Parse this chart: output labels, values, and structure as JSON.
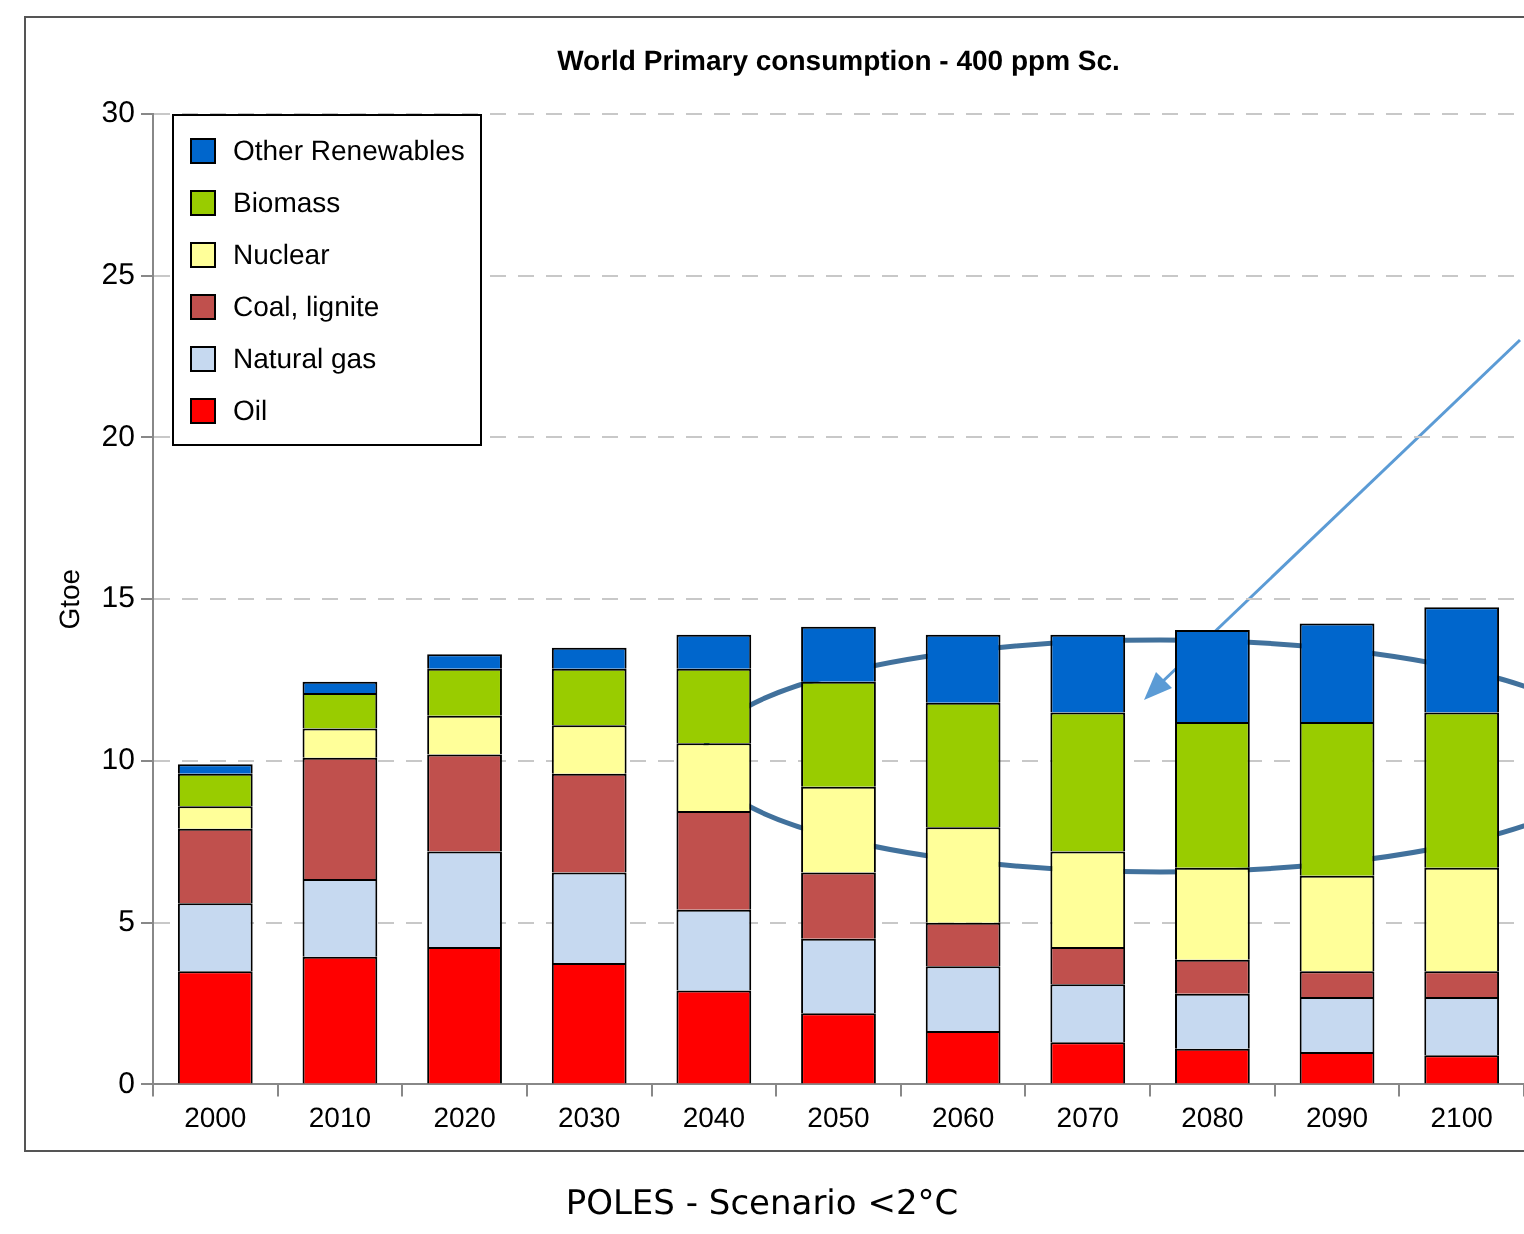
{
  "chart_data": {
    "type": "bar",
    "title": "World Primary consumption - 400 ppm Sc.",
    "ylabel": "Gtoe",
    "stacked": true,
    "categories": [
      "2000",
      "2010",
      "2020",
      "2030",
      "2040",
      "2050",
      "2060",
      "2070",
      "2080",
      "2090",
      "2100"
    ],
    "series": [
      {
        "name": "Oil",
        "color": "#ff0000",
        "values": [
          3.5,
          3.95,
          4.25,
          3.75,
          2.9,
          2.2,
          1.65,
          1.3,
          1.1,
          1.0,
          0.9
        ]
      },
      {
        "name": "Natural gas",
        "color": "#c6d9f0",
        "values": [
          2.1,
          2.4,
          2.95,
          2.8,
          2.5,
          2.3,
          2.0,
          1.8,
          1.7,
          1.7,
          1.8
        ]
      },
      {
        "name": "Coal, lignite",
        "color": "#c0504d",
        "values": [
          2.3,
          3.75,
          3.0,
          3.05,
          3.05,
          2.05,
          1.35,
          1.15,
          1.05,
          0.8,
          0.8
        ]
      },
      {
        "name": "Nuclear",
        "color": "#ffff99",
        "values": [
          0.7,
          0.9,
          1.2,
          1.5,
          2.1,
          2.65,
          2.95,
          2.95,
          2.85,
          2.95,
          3.2
        ]
      },
      {
        "name": "Biomass",
        "color": "#99cc00",
        "values": [
          1.0,
          1.1,
          1.45,
          1.75,
          2.3,
          3.25,
          3.85,
          4.3,
          4.5,
          4.75,
          4.8
        ]
      },
      {
        "name": "Other Renewables",
        "color": "#0066cc",
        "values": [
          0.3,
          0.35,
          0.45,
          0.65,
          1.05,
          1.7,
          2.1,
          2.4,
          2.85,
          3.05,
          3.25
        ]
      }
    ],
    "ylim": [
      0,
      30
    ],
    "yticks": [
      0,
      5,
      10,
      15,
      20,
      25,
      30
    ],
    "grid": "y",
    "legend": "top left",
    "annotations": [
      "POLES - Scenario <2°C"
    ]
  }
}
